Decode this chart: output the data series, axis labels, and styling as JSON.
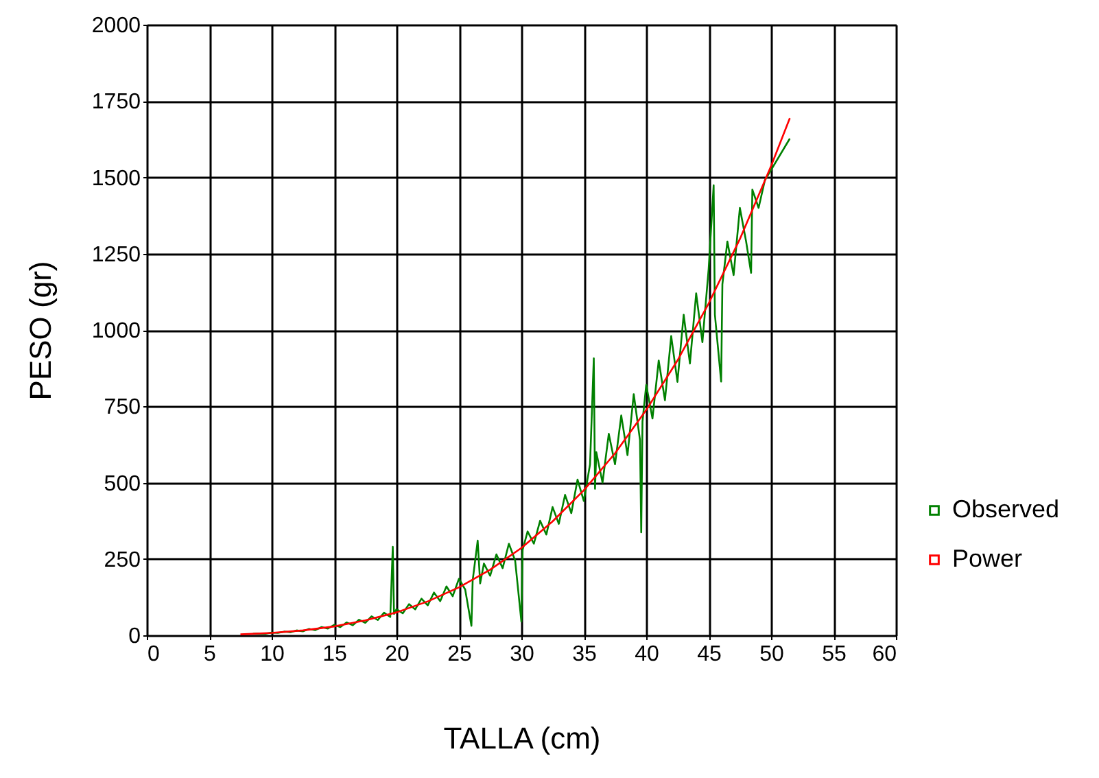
{
  "chart_data": {
    "type": "line",
    "xlabel": "TALLA (cm)",
    "ylabel": "PESO (gr)",
    "xlim": [
      0,
      60
    ],
    "xticks": [
      0,
      5,
      10,
      15,
      20,
      25,
      30,
      35,
      40,
      45,
      50,
      55,
      60
    ],
    "ylim": [
      0,
      2000
    ],
    "yticks": [
      0,
      250,
      500,
      750,
      1000,
      1250,
      1500,
      1750,
      2000
    ],
    "grid": true,
    "legend": "right",
    "series": [
      {
        "name": "Observed",
        "color": "#008000",
        "x": [
          8.5,
          9,
          9.5,
          10,
          10.5,
          11,
          11.5,
          12,
          12.5,
          13,
          13.5,
          14,
          14.5,
          15,
          15.5,
          16,
          16.5,
          17,
          17.5,
          18,
          18.5,
          19,
          19.5,
          19.7,
          19.8,
          20,
          20.5,
          21,
          21.5,
          22,
          22.5,
          23,
          23.5,
          24,
          24.5,
          25,
          25.5,
          26,
          26.1,
          26.5,
          26.7,
          27,
          27.5,
          28,
          28.5,
          29,
          29.5,
          30,
          30.1,
          30.5,
          31,
          31.5,
          32,
          32.5,
          33,
          33.5,
          34,
          34.5,
          35,
          35.5,
          35.8,
          35.9,
          36,
          36.5,
          37,
          37.5,
          38,
          38.5,
          39,
          39.5,
          39.6,
          39.7,
          40,
          40.5,
          41,
          41.5,
          42,
          42.5,
          43,
          43.5,
          44,
          44.5,
          45,
          45.4,
          45.5,
          46,
          46.1,
          46.5,
          47,
          47.5,
          48,
          48.4,
          48.5,
          49,
          49.5,
          51.5
        ],
        "values": [
          5,
          6,
          5,
          9,
          8,
          12,
          10,
          16,
          13,
          21,
          17,
          27,
          22,
          34,
          27,
          42,
          33,
          51,
          41,
          62,
          50,
          74,
          60,
          290,
          70,
          86,
          72,
          102,
          85,
          120,
          98,
          140,
          112,
          160,
          128,
          185,
          150,
          31,
          180,
          310,
          170,
          235,
          195,
          265,
          220,
          300,
          245,
          45,
          280,
          340,
          300,
          375,
          330,
          420,
          365,
          460,
          400,
          510,
          440,
          560,
          907,
          480,
          600,
          500,
          660,
          560,
          720,
          590,
          790,
          640,
          337,
          700,
          820,
          710,
          900,
          770,
          980,
          830,
          1050,
          890,
          1120,
          960,
          1200,
          1474,
          1050,
          831,
          1150,
          1290,
          1180,
          1400,
          1290,
          1187,
          1460,
          1400,
          1490,
          1627
        ]
      },
      {
        "name": "Power",
        "color": "#ff0000",
        "x": [
          7.5,
          10,
          12.5,
          15,
          17.5,
          20,
          22.5,
          25,
          27.5,
          30,
          32.5,
          35,
          37.5,
          40,
          42.5,
          45,
          47.5,
          50,
          51.5
        ],
        "values": [
          3,
          8,
          16,
          29,
          49,
          75,
          111,
          157,
          215,
          286,
          373,
          475,
          596,
          738,
          900,
          1087,
          1298,
          1537,
          1694
        ]
      }
    ]
  }
}
